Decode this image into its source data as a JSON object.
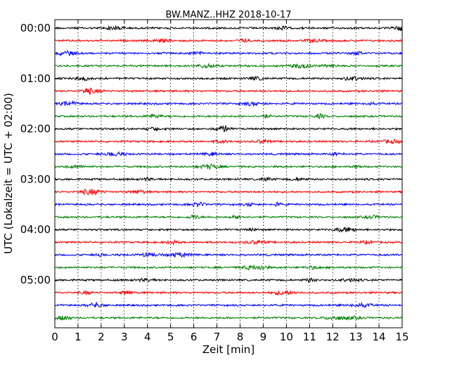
{
  "chart_data": {
    "type": "line",
    "title": "BW.MANZ..HHZ 2018-10-17",
    "xlabel": "Zeit  [min]",
    "ylabel": "UTC (Lokalzeit = UTC + 02:00)",
    "xlim": [
      0,
      15
    ],
    "x_ticks": [
      0,
      1,
      2,
      3,
      4,
      5,
      6,
      7,
      8,
      9,
      10,
      11,
      12,
      13,
      14,
      15
    ],
    "x_tick_labels": [
      "0",
      "1",
      "2",
      "3",
      "4",
      "5",
      "6",
      "7",
      "8",
      "9",
      "10",
      "11",
      "12",
      "13",
      "14",
      "15"
    ],
    "y_ticks": [
      "00:00",
      "01:00",
      "02:00",
      "03:00",
      "04:00",
      "05:00"
    ],
    "grid": "vertical dotted at each minute",
    "trace_interval_minutes": 15,
    "trace_count": 24,
    "trace_colors": [
      "#000000",
      "#ff0000",
      "#0000ff",
      "#007f00"
    ],
    "series": [
      {
        "start": "00:00",
        "color": "#000000"
      },
      {
        "start": "00:15",
        "color": "#ff0000"
      },
      {
        "start": "00:30",
        "color": "#0000ff"
      },
      {
        "start": "00:45",
        "color": "#007f00"
      },
      {
        "start": "01:00",
        "color": "#000000"
      },
      {
        "start": "01:15",
        "color": "#ff0000"
      },
      {
        "start": "01:30",
        "color": "#0000ff"
      },
      {
        "start": "01:45",
        "color": "#007f00"
      },
      {
        "start": "02:00",
        "color": "#000000"
      },
      {
        "start": "02:15",
        "color": "#ff0000"
      },
      {
        "start": "02:30",
        "color": "#0000ff"
      },
      {
        "start": "02:45",
        "color": "#007f00"
      },
      {
        "start": "03:00",
        "color": "#000000"
      },
      {
        "start": "03:15",
        "color": "#ff0000"
      },
      {
        "start": "03:30",
        "color": "#0000ff"
      },
      {
        "start": "03:45",
        "color": "#007f00"
      },
      {
        "start": "04:00",
        "color": "#000000"
      },
      {
        "start": "04:15",
        "color": "#ff0000"
      },
      {
        "start": "04:30",
        "color": "#0000ff"
      },
      {
        "start": "04:45",
        "color": "#007f00"
      },
      {
        "start": "05:00",
        "color": "#000000"
      },
      {
        "start": "05:15",
        "color": "#ff0000"
      },
      {
        "start": "05:30",
        "color": "#0000ff"
      },
      {
        "start": "05:45",
        "color": "#007f00"
      }
    ]
  }
}
